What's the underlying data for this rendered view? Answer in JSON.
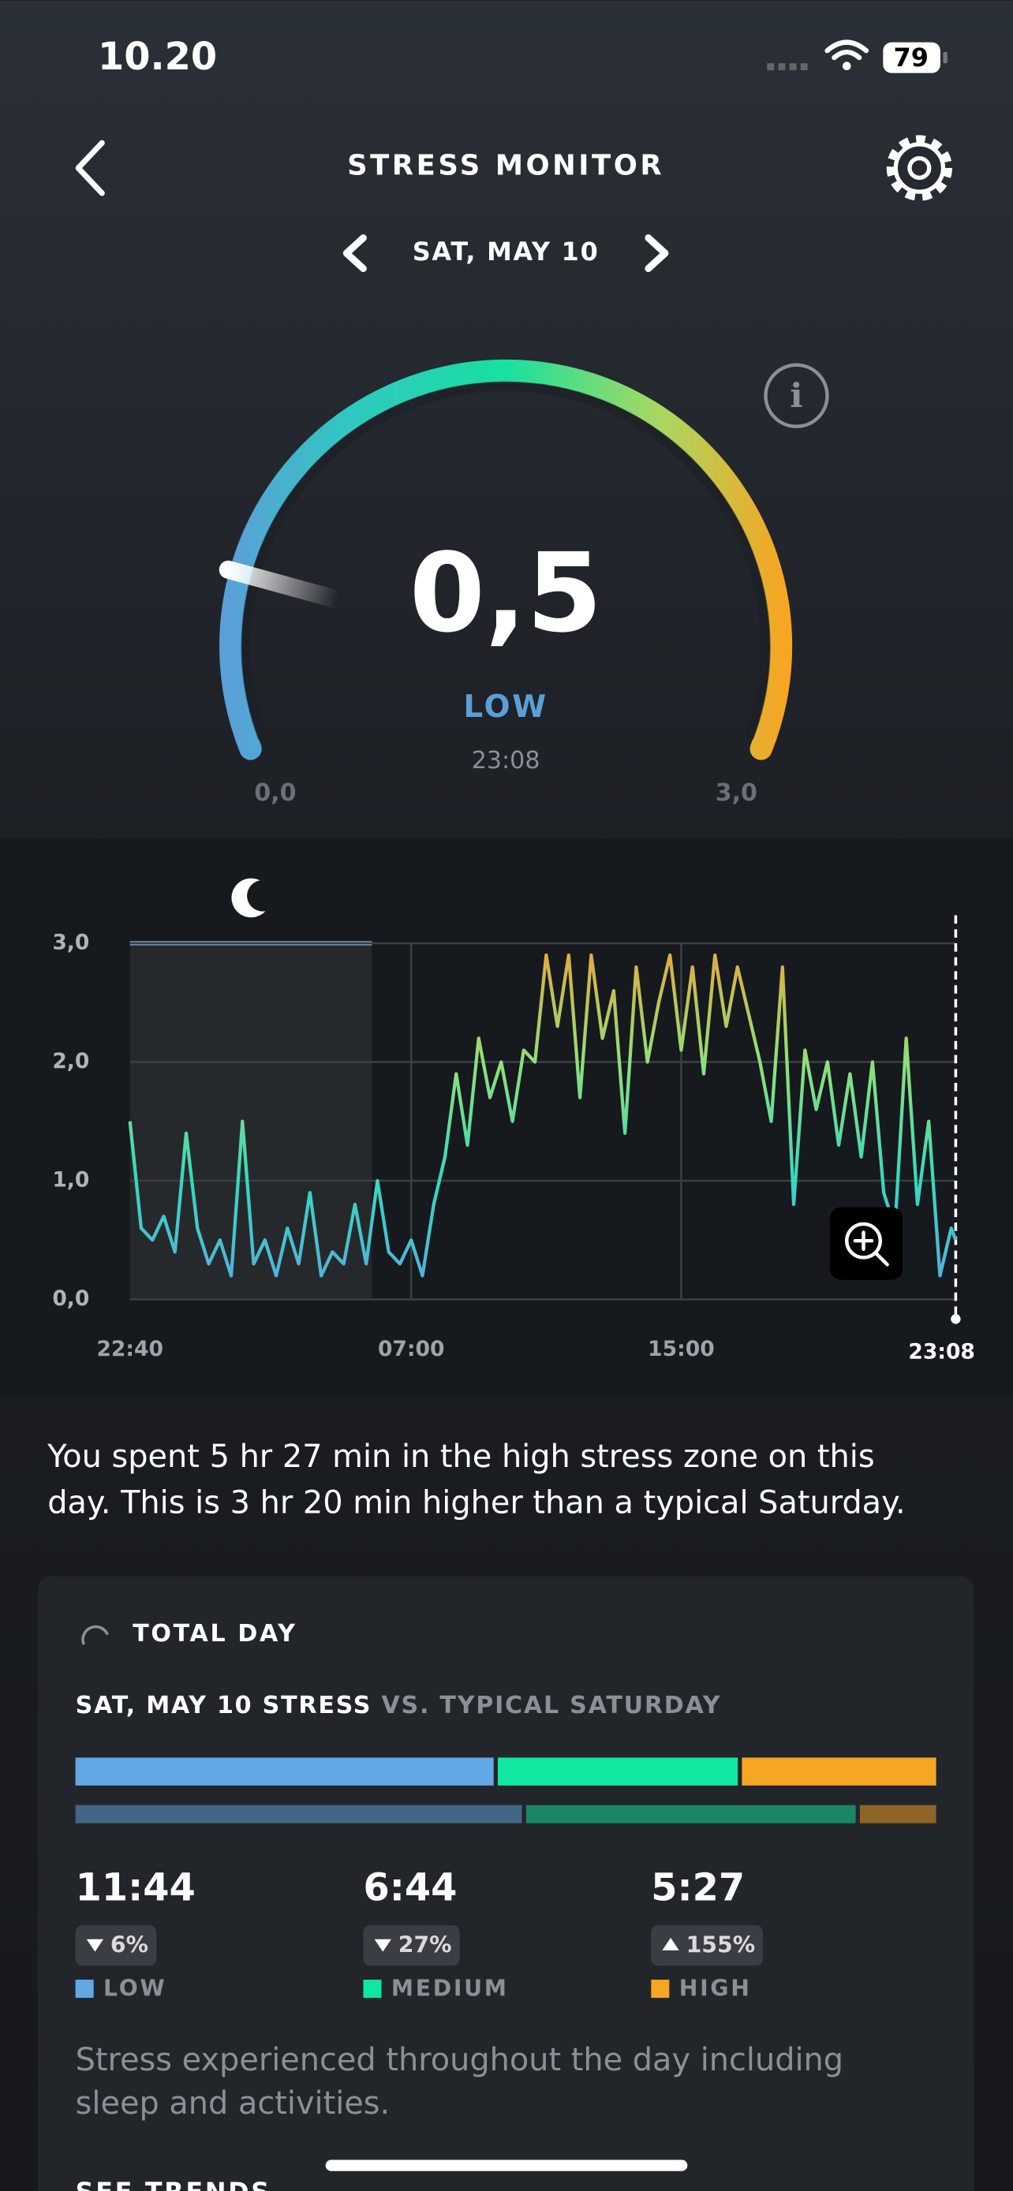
{
  "status_bar": {
    "time": "10.20",
    "battery": "79"
  },
  "header": {
    "title": "STRESS MONITOR",
    "date": "SAT, MAY 10"
  },
  "gauge": {
    "value": {
      "value": 0.5,
      "label": "0,5"
    },
    "level": "LOW",
    "time": "23:08",
    "min": {
      "value": 0,
      "label": "0,0"
    },
    "max": {
      "value": 3,
      "label": "3,0"
    }
  },
  "chart_data": {
    "type": "line",
    "x": [
      0,
      20,
      40,
      60,
      80,
      100,
      120,
      140,
      160,
      180,
      200,
      220,
      240,
      260,
      280,
      300,
      320,
      340,
      360,
      380,
      400,
      420,
      440,
      460,
      480,
      500,
      520,
      540,
      560,
      580,
      600,
      620,
      640,
      660,
      680,
      700,
      720,
      740,
      760,
      780,
      800,
      820,
      840,
      860,
      880,
      900,
      920,
      940,
      960,
      980,
      1000,
      1020,
      1040,
      1060,
      1080,
      1100,
      1120,
      1140,
      1160,
      1180,
      1200,
      1220,
      1240,
      1260,
      1280,
      1300,
      1320,
      1340,
      1360,
      1380,
      1400,
      1420,
      1440,
      1460,
      1468
    ],
    "values": [
      1.5,
      0.6,
      0.5,
      0.7,
      0.4,
      1.4,
      0.6,
      0.3,
      0.5,
      0.2,
      1.5,
      0.3,
      0.5,
      0.2,
      0.6,
      0.3,
      0.9,
      0.2,
      0.4,
      0.3,
      0.8,
      0.3,
      1.0,
      0.4,
      0.3,
      0.5,
      0.2,
      0.8,
      1.2,
      1.9,
      1.3,
      2.2,
      1.7,
      2.0,
      1.5,
      2.1,
      2.0,
      2.9,
      2.3,
      2.9,
      1.7,
      2.9,
      2.2,
      2.6,
      1.4,
      2.8,
      2.0,
      2.5,
      2.9,
      2.1,
      2.8,
      1.9,
      2.9,
      2.3,
      2.8,
      2.4,
      2.0,
      1.5,
      2.8,
      0.8,
      2.1,
      1.6,
      2.0,
      1.3,
      1.9,
      1.2,
      2.0,
      0.9,
      0.6,
      2.2,
      0.8,
      1.5,
      0.2,
      0.6,
      0.5
    ],
    "xlim": [
      0,
      1468
    ],
    "xticks": [
      {
        "value": 0,
        "label": "22:40"
      },
      {
        "value": 500,
        "label": "07:00"
      },
      {
        "value": 980,
        "label": "15:00"
      },
      {
        "value": 1468,
        "label": "23:08"
      }
    ],
    "ylim": [
      0,
      3
    ],
    "yticks": [
      {
        "value": 0,
        "label": "0,0"
      },
      {
        "value": 1,
        "label": "1,0"
      },
      {
        "value": 2,
        "label": "2,0"
      },
      {
        "value": 3,
        "label": "3,0"
      }
    ],
    "colors": [
      "#5aa8e0",
      "#36d8c0",
      "#8ee07a",
      "#eaa83a"
    ],
    "sleep": [
      0,
      430
    ],
    "grid": true
  },
  "summary": {
    "lines": [
      "You spent 5 hr 27 min in the high stress zone on this",
      "day. This is 3 hr 20 min higher than a typical Saturday."
    ]
  },
  "card": {
    "title": "TOTAL DAY",
    "heading": "SAT, MAY 10 STRESS",
    "comparison": "VS. TYPICAL SATURDAY",
    "zones": [
      {
        "name": "LOW",
        "color": "#62a8e5",
        "duration": {
          "value": 704,
          "label": "11:44"
        },
        "change": {
          "value": -6,
          "label": "6%"
        },
        "typical": 749
      },
      {
        "name": "MEDIUM",
        "color": "#0fe8a0",
        "duration": {
          "value": 404,
          "label": "6:44"
        },
        "change": {
          "value": -27,
          "label": "27%"
        },
        "typical": 553
      },
      {
        "name": "HIGH",
        "color": "#f5a623",
        "duration": {
          "value": 327,
          "label": "5:27"
        },
        "change": {
          "value": 155,
          "label": "155%"
        },
        "typical": 128
      }
    ],
    "note": {
      "lines": [
        "Stress experienced throughout the day including",
        "sleep and activities."
      ]
    },
    "link": "SEE TRENDS"
  }
}
